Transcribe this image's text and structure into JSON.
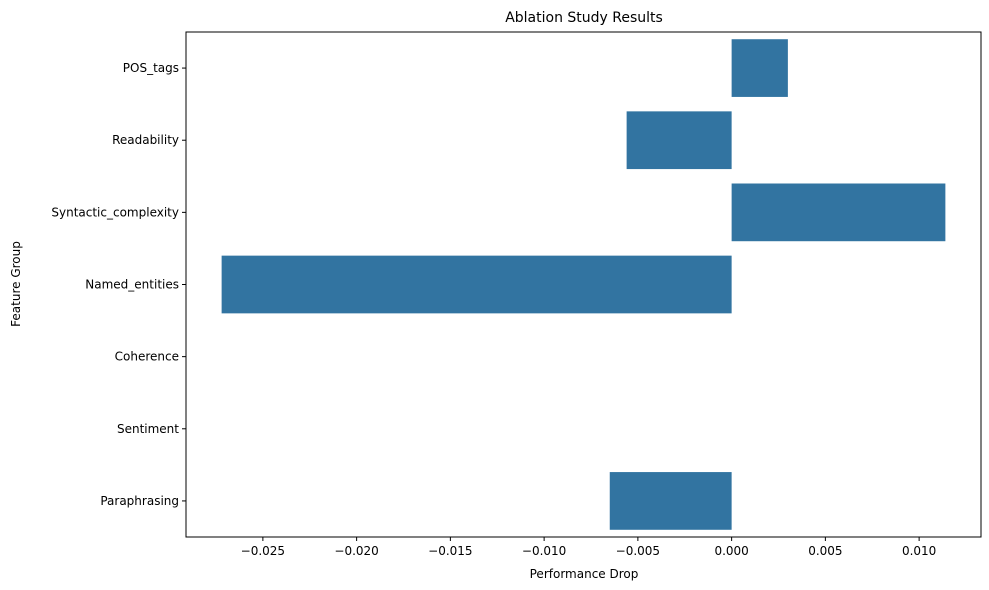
{
  "chart_data": {
    "type": "bar",
    "orientation": "horizontal",
    "title": "Ablation Study Results",
    "xlabel": "Performance Drop",
    "ylabel": "Feature Group",
    "categories": [
      "POS_tags",
      "Readability",
      "Syntactic_complexity",
      "Named_entities",
      "Coherence",
      "Sentiment",
      "Paraphrasing"
    ],
    "values": [
      0.003,
      -0.0056,
      0.0114,
      -0.0272,
      0.0,
      0.0,
      -0.0065
    ],
    "xlim": [
      -0.0291,
      0.0133
    ],
    "xticks": [
      -0.025,
      -0.02,
      -0.015,
      -0.01,
      -0.005,
      0.0,
      0.005,
      0.01
    ],
    "xtick_labels": [
      "−0.025",
      "−0.020",
      "−0.015",
      "−0.010",
      "−0.005",
      "0.000",
      "0.005",
      "0.010"
    ],
    "bar_color": "#3274a1",
    "grid": false,
    "legend": "none"
  }
}
